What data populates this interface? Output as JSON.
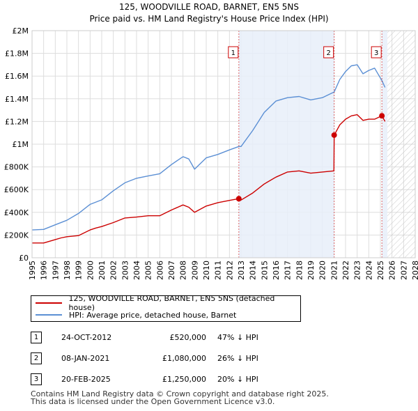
{
  "chart_data": {
    "type": "line",
    "title": "125, WOODVILLE ROAD, BARNET, EN5 5NS",
    "subtitle": "Price paid vs. HM Land Registry's House Price Index (HPI)",
    "xlim": [
      1995,
      2028
    ],
    "ylim": [
      0,
      2000000
    ],
    "x_ticks": [
      "1995",
      "1996",
      "1997",
      "1998",
      "1999",
      "2000",
      "2001",
      "2002",
      "2003",
      "2004",
      "2005",
      "2006",
      "2007",
      "2008",
      "2009",
      "2010",
      "2011",
      "2012",
      "2013",
      "2014",
      "2015",
      "2016",
      "2017",
      "2018",
      "2019",
      "2020",
      "2021",
      "2022",
      "2023",
      "2024",
      "2025",
      "2026",
      "2027",
      "2028"
    ],
    "y_ticks": [
      {
        "value": 0,
        "label": "£0"
      },
      {
        "value": 200000,
        "label": "£200K"
      },
      {
        "value": 400000,
        "label": "£400K"
      },
      {
        "value": 600000,
        "label": "£600K"
      },
      {
        "value": 800000,
        "label": "£800K"
      },
      {
        "value": 1000000,
        "label": "£1M"
      },
      {
        "value": 1200000,
        "label": "£1.2M"
      },
      {
        "value": 1400000,
        "label": "£1.4M"
      },
      {
        "value": 1600000,
        "label": "£1.6M"
      },
      {
        "value": 1800000,
        "label": "£1.8M"
      },
      {
        "value": 2000000,
        "label": "£2M"
      }
    ],
    "grid": true,
    "shaded_ranges": [
      {
        "from": 2012.81,
        "to": 2021.02,
        "type": "highlight"
      },
      {
        "from": 2025.13,
        "to": 2025.6,
        "type": "highlight"
      },
      {
        "from": 2025.6,
        "to": 2028,
        "type": "hatched-future"
      }
    ],
    "series": [
      {
        "name": "125, WOODVILLE ROAD, BARNET, EN5 5NS (detached house)",
        "color": "#cc0000",
        "x": [
          1995,
          1996,
          1997,
          1997.5,
          1998,
          1999,
          2000,
          2000.5,
          2001,
          2002,
          2003,
          2004,
          2005,
          2006,
          2007,
          2008,
          2008.5,
          2009,
          2010,
          2011,
          2012,
          2012.81,
          2013,
          2014,
          2015,
          2016,
          2017,
          2018,
          2019,
          2020,
          2021.0,
          2021.02,
          2021.5,
          2022,
          2022.5,
          2023,
          2023.5,
          2024,
          2024.5,
          2025.13,
          2025.4
        ],
        "values": [
          130000,
          130000,
          160000,
          175000,
          185000,
          195000,
          245000,
          262000,
          275000,
          310000,
          350000,
          358000,
          370000,
          370000,
          420000,
          465000,
          445000,
          400000,
          455000,
          485000,
          505000,
          520000,
          508000,
          570000,
          650000,
          710000,
          755000,
          765000,
          745000,
          755000,
          765000,
          1080000,
          1170000,
          1220000,
          1250000,
          1260000,
          1210000,
          1220000,
          1220000,
          1250000,
          1200000
        ]
      },
      {
        "name": "HPI: Average price, detached house, Barnet",
        "color": "#5b8fd4",
        "x": [
          1995,
          1996,
          1997,
          1998,
          1999,
          2000,
          2001,
          2002,
          2003,
          2004,
          2005,
          2006,
          2007,
          2008,
          2008.5,
          2009,
          2010,
          2011,
          2012,
          2012.81,
          2013,
          2014,
          2015,
          2016,
          2017,
          2018,
          2019,
          2020,
          2021.02,
          2021.5,
          2022,
          2022.5,
          2023,
          2023.5,
          2024,
          2024.5,
          2025.13,
          2025.4
        ],
        "values": [
          245000,
          250000,
          290000,
          330000,
          390000,
          470000,
          510000,
          590000,
          660000,
          700000,
          720000,
          740000,
          820000,
          890000,
          870000,
          780000,
          880000,
          910000,
          950000,
          980000,
          980000,
          1120000,
          1280000,
          1380000,
          1410000,
          1420000,
          1390000,
          1410000,
          1460000,
          1570000,
          1640000,
          1690000,
          1700000,
          1620000,
          1650000,
          1670000,
          1560000,
          1500000
        ]
      }
    ],
    "markers": [
      {
        "label": "1",
        "x": 2012.81,
        "y": 520000
      },
      {
        "label": "2",
        "x": 2021.02,
        "y": 1080000
      },
      {
        "label": "3",
        "x": 2025.13,
        "y": 1250000
      }
    ]
  },
  "legend": {
    "property": {
      "label": "125, WOODVILLE ROAD, BARNET, EN5 5NS (detached house)",
      "color": "#cc0000"
    },
    "hpi": {
      "label": "HPI: Average price, detached house, Barnet",
      "color": "#5b8fd4"
    }
  },
  "sales": [
    {
      "num": "1",
      "date": "24-OCT-2012",
      "price": "£520,000",
      "hpi": "47% ↓ HPI"
    },
    {
      "num": "2",
      "date": "08-JAN-2021",
      "price": "£1,080,000",
      "hpi": "26% ↓ HPI"
    },
    {
      "num": "3",
      "date": "20-FEB-2025",
      "price": "£1,250,000",
      "hpi": "20% ↓ HPI"
    }
  ],
  "footer": {
    "line1": "Contains HM Land Registry data © Crown copyright and database right 2025.",
    "line2": "This data is licensed under the Open Government Licence v3.0."
  }
}
